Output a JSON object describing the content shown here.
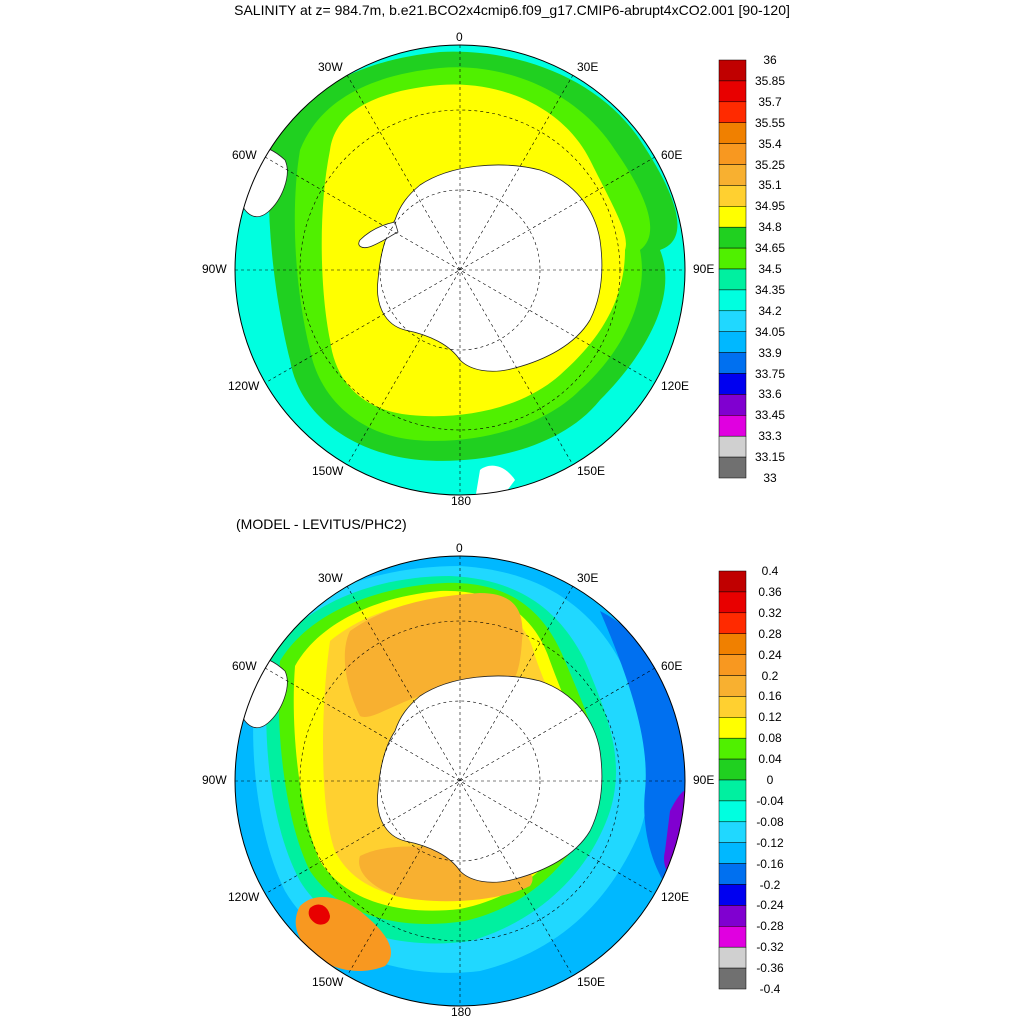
{
  "title": "SALINITY at z= 984.7m, b.e21.BCO2x4cmip6.f09_g17.CMIP6-abrupt4xCO2.001 [90-120]",
  "subtitle": "(MODEL - LEVITUS/PHC2)",
  "longitude_labels": {
    "top": "0",
    "top_left": "30W",
    "top_right": "30E",
    "upper_left": "60W",
    "upper_right": "60E",
    "left": "90W",
    "right": "90E",
    "lower_left": "120W",
    "lower_right": "120E",
    "bottom_left": "150W",
    "bottom_right": "150E",
    "bottom": "180"
  },
  "panels": [
    {
      "name": "salinity",
      "colorbar": {
        "levels": [
          "36",
          "35.85",
          "35.7",
          "35.55",
          "35.4",
          "35.25",
          "35.1",
          "34.95",
          "34.8",
          "34.65",
          "34.5",
          "34.35",
          "34.2",
          "34.05",
          "33.9",
          "33.75",
          "33.6",
          "33.45",
          "33.3",
          "33.15",
          "33"
        ],
        "colors": [
          "#c00000",
          "#e80000",
          "#ff2a00",
          "#f08000",
          "#f89820",
          "#f8b030",
          "#ffd030",
          "#ffff00",
          "#20d020",
          "#50f000",
          "#00f0a0",
          "#00ffe0",
          "#20d8ff",
          "#00b8ff",
          "#0070f0",
          "#0000f0",
          "#8000d0",
          "#e000e0",
          "#d0d0d0",
          "#707070"
        ]
      }
    },
    {
      "name": "difference",
      "colorbar": {
        "levels": [
          "0.4",
          "0.36",
          "0.32",
          "0.28",
          "0.24",
          "0.2",
          "0.16",
          "0.12",
          "0.08",
          "0.04",
          "0",
          "-0.04",
          "-0.08",
          "-0.12",
          "-0.16",
          "-0.2",
          "-0.24",
          "-0.28",
          "-0.32",
          "-0.36",
          "-0.4"
        ],
        "colors": [
          "#c00000",
          "#e80000",
          "#ff2a00",
          "#f08000",
          "#f89820",
          "#f8b030",
          "#ffd030",
          "#ffff00",
          "#50f000",
          "#20d020",
          "#00f0a0",
          "#00ffe0",
          "#20d8ff",
          "#00b8ff",
          "#0070f0",
          "#0000f0",
          "#8000d0",
          "#e000e0",
          "#d0d0d0",
          "#707070"
        ]
      }
    }
  ]
}
